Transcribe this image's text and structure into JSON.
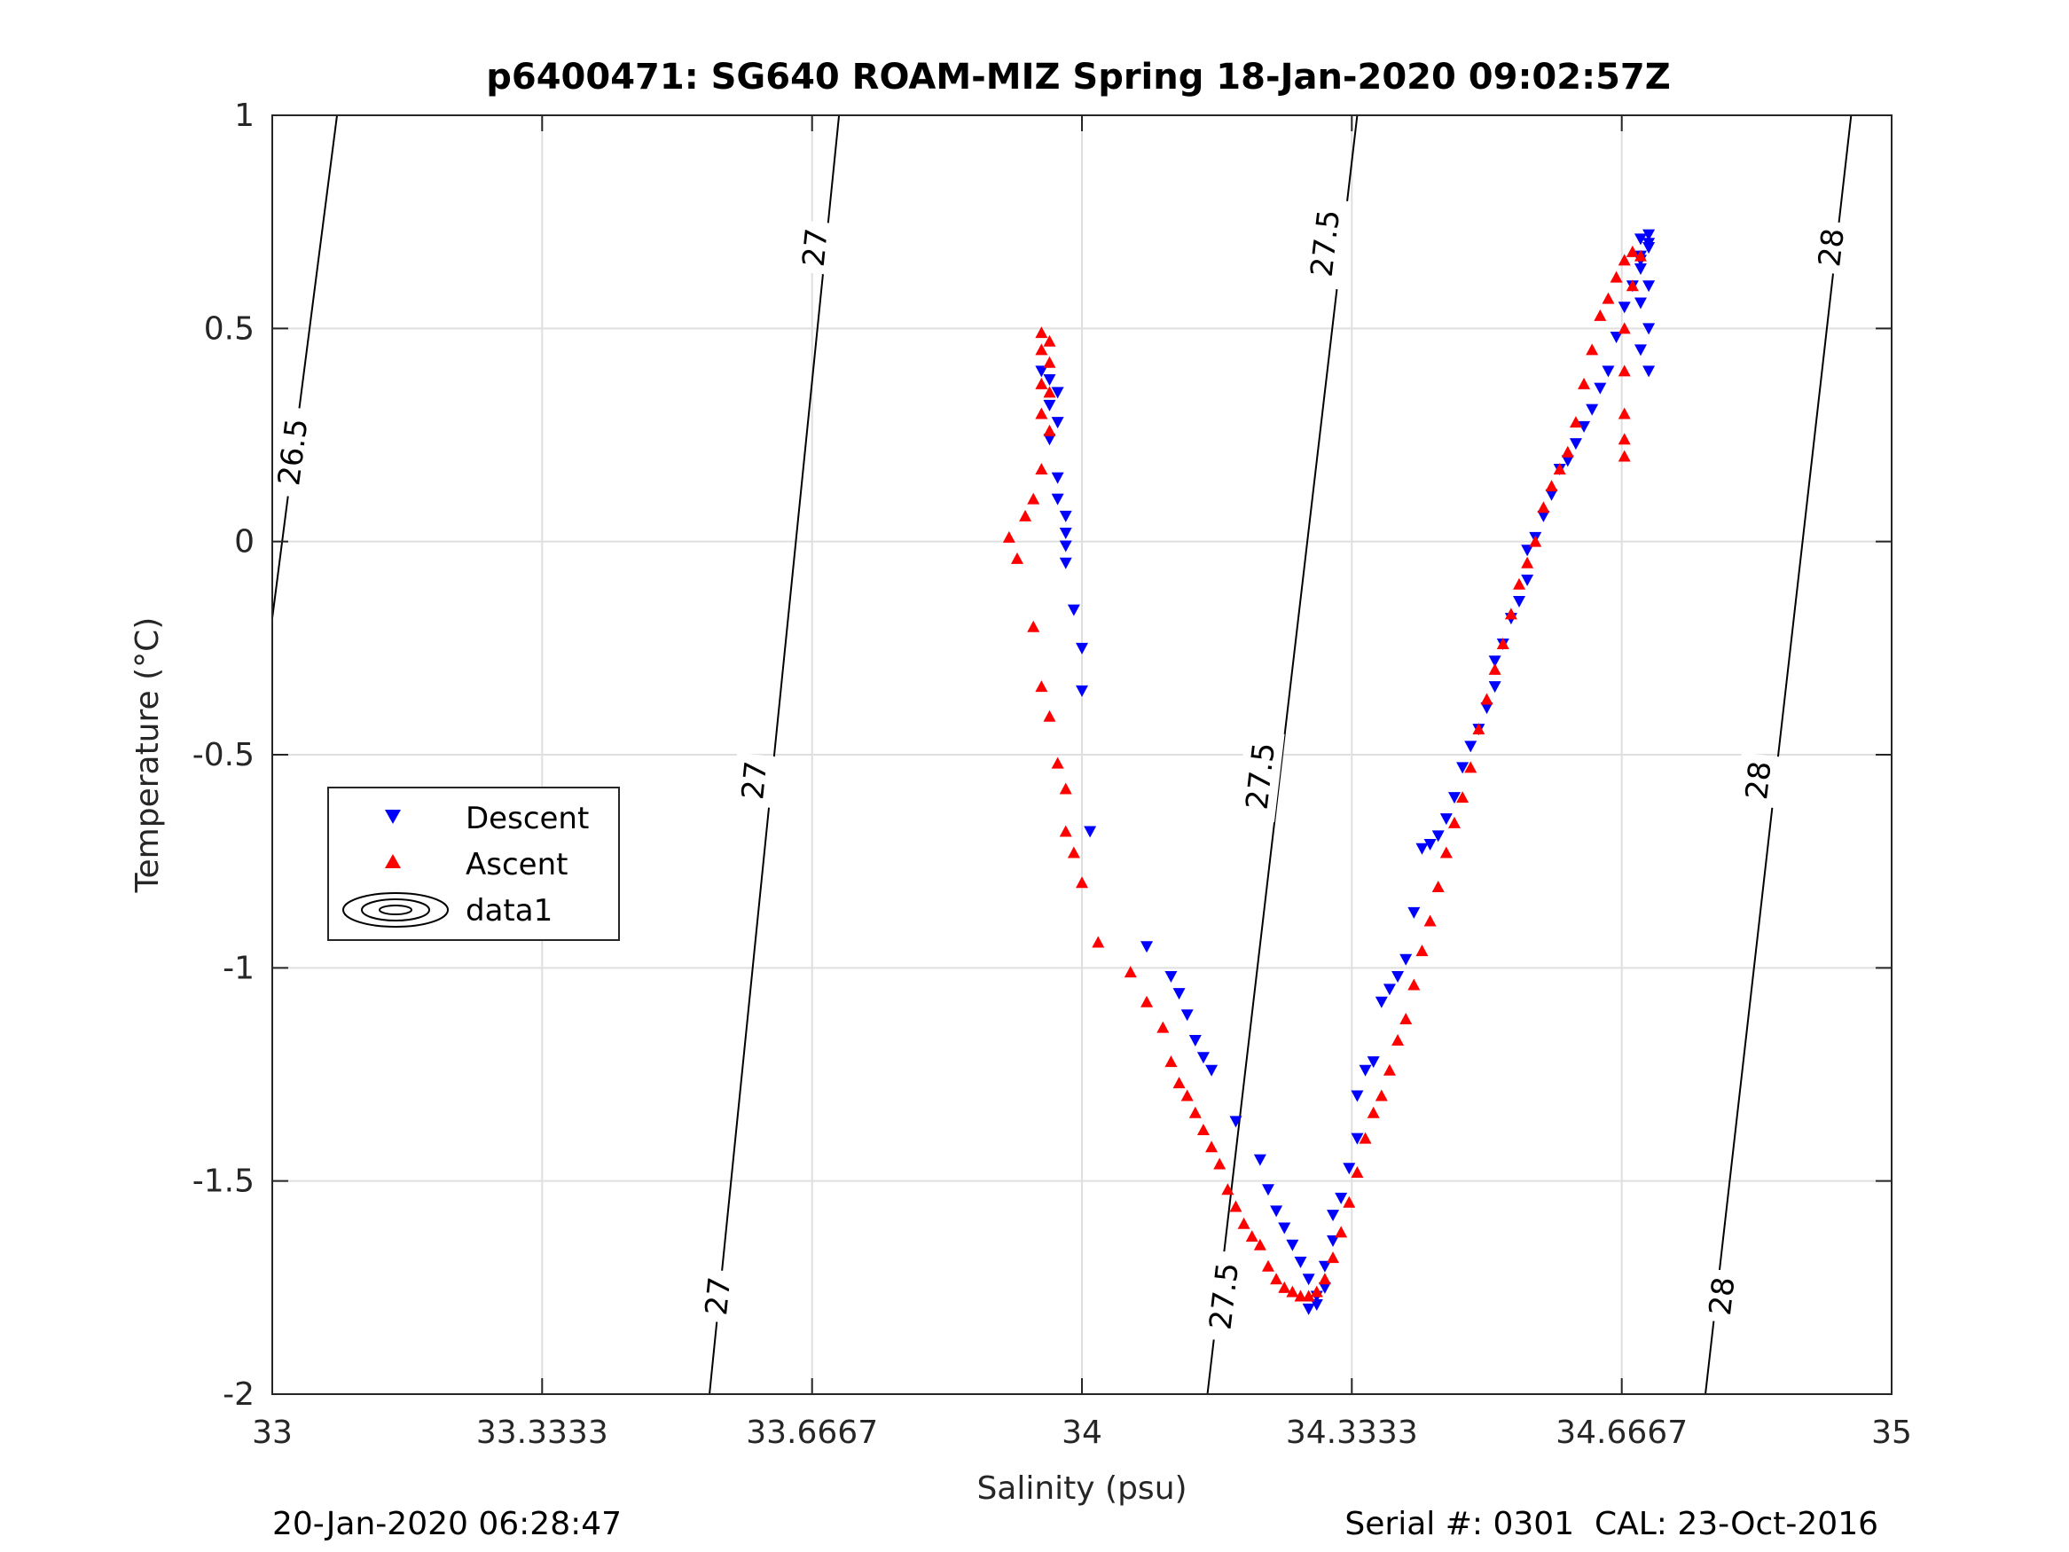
{
  "chart_data": {
    "type": "scatter",
    "title": "p6400471: SG640 ROAM-MIZ Spring 18-Jan-2020 09:02:57Z",
    "xlabel": "Salinity (psu)",
    "ylabel": "Temperature (°C)",
    "xlim": [
      33,
      35
    ],
    "ylim": [
      -2,
      1
    ],
    "x_ticks": [
      33,
      33.3333,
      33.6667,
      34,
      34.3333,
      34.6667,
      35
    ],
    "x_tick_labels": [
      "33",
      "33.3333",
      "33.6667",
      "34",
      "34.3333",
      "34.6667",
      "35"
    ],
    "y_ticks": [
      -2,
      -1.5,
      -1,
      -0.5,
      0,
      0.5,
      1
    ],
    "y_tick_labels": [
      "-2",
      "-1.5",
      "-1",
      "-0.5",
      "0",
      "0.5",
      "1"
    ],
    "grid": true,
    "legend_position": "middle-left",
    "legend": [
      "Descent",
      "Ascent",
      "data1"
    ],
    "colors": {
      "descent": "#0000ff",
      "ascent": "#ff0000",
      "contour": "#000000",
      "grid": "#dfdfdf",
      "axis": "#262626"
    },
    "series": [
      {
        "name": "Descent",
        "marker": "triangle-down",
        "color": "#0000ff",
        "points": [
          [
            33.95,
            0.4
          ],
          [
            33.96,
            0.38
          ],
          [
            33.97,
            0.35
          ],
          [
            33.96,
            0.32
          ],
          [
            33.97,
            0.28
          ],
          [
            33.96,
            0.24
          ],
          [
            33.97,
            0.15
          ],
          [
            33.97,
            0.1
          ],
          [
            33.98,
            0.06
          ],
          [
            33.98,
            0.02
          ],
          [
            33.98,
            -0.01
          ],
          [
            33.98,
            -0.05
          ],
          [
            33.99,
            -0.16
          ],
          [
            34.0,
            -0.25
          ],
          [
            34.0,
            -0.35
          ],
          [
            34.01,
            -0.68
          ],
          [
            34.08,
            -0.95
          ],
          [
            34.11,
            -1.02
          ],
          [
            34.12,
            -1.06
          ],
          [
            34.13,
            -1.11
          ],
          [
            34.14,
            -1.17
          ],
          [
            34.15,
            -1.21
          ],
          [
            34.16,
            -1.24
          ],
          [
            34.19,
            -1.36
          ],
          [
            34.22,
            -1.45
          ],
          [
            34.23,
            -1.52
          ],
          [
            34.24,
            -1.57
          ],
          [
            34.25,
            -1.61
          ],
          [
            34.26,
            -1.65
          ],
          [
            34.27,
            -1.69
          ],
          [
            34.28,
            -1.73
          ],
          [
            34.29,
            -1.77
          ],
          [
            34.28,
            -1.8
          ],
          [
            34.29,
            -1.79
          ],
          [
            34.3,
            -1.75
          ],
          [
            34.3,
            -1.7
          ],
          [
            34.31,
            -1.64
          ],
          [
            34.31,
            -1.58
          ],
          [
            34.32,
            -1.54
          ],
          [
            34.33,
            -1.47
          ],
          [
            34.34,
            -1.4
          ],
          [
            34.34,
            -1.3
          ],
          [
            34.35,
            -1.24
          ],
          [
            34.36,
            -1.22
          ],
          [
            34.37,
            -1.08
          ],
          [
            34.38,
            -1.05
          ],
          [
            34.39,
            -1.02
          ],
          [
            34.4,
            -0.98
          ],
          [
            34.41,
            -0.87
          ],
          [
            34.42,
            -0.72
          ],
          [
            34.43,
            -0.71
          ],
          [
            34.44,
            -0.69
          ],
          [
            34.45,
            -0.65
          ],
          [
            34.46,
            -0.6
          ],
          [
            34.47,
            -0.53
          ],
          [
            34.48,
            -0.48
          ],
          [
            34.49,
            -0.44
          ],
          [
            34.5,
            -0.39
          ],
          [
            34.51,
            -0.34
          ],
          [
            34.51,
            -0.28
          ],
          [
            34.52,
            -0.24
          ],
          [
            34.53,
            -0.18
          ],
          [
            34.54,
            -0.14
          ],
          [
            34.55,
            -0.09
          ],
          [
            34.55,
            -0.02
          ],
          [
            34.56,
            0.01
          ],
          [
            34.57,
            0.06
          ],
          [
            34.58,
            0.11
          ],
          [
            34.59,
            0.17
          ],
          [
            34.6,
            0.19
          ],
          [
            34.61,
            0.23
          ],
          [
            34.62,
            0.27
          ],
          [
            34.63,
            0.31
          ],
          [
            34.64,
            0.36
          ],
          [
            34.65,
            0.4
          ],
          [
            34.66,
            0.48
          ],
          [
            34.67,
            0.55
          ],
          [
            34.68,
            0.6
          ],
          [
            34.69,
            0.64
          ],
          [
            34.69,
            0.67
          ],
          [
            34.7,
            0.69
          ],
          [
            34.7,
            0.72
          ],
          [
            34.69,
            0.71
          ],
          [
            34.7,
            0.7
          ],
          [
            34.69,
            0.66
          ],
          [
            34.7,
            0.6
          ],
          [
            34.69,
            0.56
          ],
          [
            34.7,
            0.5
          ],
          [
            34.69,
            0.45
          ],
          [
            34.7,
            0.4
          ]
        ]
      },
      {
        "name": "Ascent",
        "marker": "triangle-up",
        "color": "#ff0000",
        "points": [
          [
            33.95,
            0.49
          ],
          [
            33.96,
            0.47
          ],
          [
            33.95,
            0.45
          ],
          [
            33.96,
            0.42
          ],
          [
            33.95,
            0.37
          ],
          [
            33.96,
            0.35
          ],
          [
            33.95,
            0.3
          ],
          [
            33.96,
            0.26
          ],
          [
            33.95,
            0.17
          ],
          [
            33.94,
            0.1
          ],
          [
            33.93,
            0.06
          ],
          [
            33.91,
            0.01
          ],
          [
            33.92,
            -0.04
          ],
          [
            33.94,
            -0.2
          ],
          [
            33.95,
            -0.34
          ],
          [
            33.96,
            -0.41
          ],
          [
            33.97,
            -0.52
          ],
          [
            33.98,
            -0.58
          ],
          [
            33.98,
            -0.68
          ],
          [
            33.99,
            -0.73
          ],
          [
            34.0,
            -0.8
          ],
          [
            34.02,
            -0.94
          ],
          [
            34.06,
            -1.01
          ],
          [
            34.08,
            -1.08
          ],
          [
            34.1,
            -1.14
          ],
          [
            34.11,
            -1.22
          ],
          [
            34.12,
            -1.27
          ],
          [
            34.13,
            -1.3
          ],
          [
            34.14,
            -1.34
          ],
          [
            34.15,
            -1.38
          ],
          [
            34.16,
            -1.42
          ],
          [
            34.17,
            -1.46
          ],
          [
            34.18,
            -1.52
          ],
          [
            34.19,
            -1.56
          ],
          [
            34.2,
            -1.6
          ],
          [
            34.21,
            -1.63
          ],
          [
            34.22,
            -1.65
          ],
          [
            34.23,
            -1.7
          ],
          [
            34.24,
            -1.73
          ],
          [
            34.25,
            -1.75
          ],
          [
            34.26,
            -1.76
          ],
          [
            34.27,
            -1.77
          ],
          [
            34.28,
            -1.77
          ],
          [
            34.29,
            -1.76
          ],
          [
            34.3,
            -1.73
          ],
          [
            34.31,
            -1.68
          ],
          [
            34.32,
            -1.62
          ],
          [
            34.33,
            -1.55
          ],
          [
            34.34,
            -1.48
          ],
          [
            34.35,
            -1.4
          ],
          [
            34.36,
            -1.34
          ],
          [
            34.37,
            -1.3
          ],
          [
            34.38,
            -1.24
          ],
          [
            34.39,
            -1.17
          ],
          [
            34.4,
            -1.12
          ],
          [
            34.41,
            -1.04
          ],
          [
            34.42,
            -0.96
          ],
          [
            34.43,
            -0.89
          ],
          [
            34.44,
            -0.81
          ],
          [
            34.45,
            -0.73
          ],
          [
            34.46,
            -0.66
          ],
          [
            34.47,
            -0.6
          ],
          [
            34.48,
            -0.53
          ],
          [
            34.49,
            -0.44
          ],
          [
            34.5,
            -0.37
          ],
          [
            34.51,
            -0.3
          ],
          [
            34.52,
            -0.24
          ],
          [
            34.53,
            -0.17
          ],
          [
            34.54,
            -0.1
          ],
          [
            34.55,
            -0.05
          ],
          [
            34.56,
            0.0
          ],
          [
            34.57,
            0.08
          ],
          [
            34.58,
            0.13
          ],
          [
            34.59,
            0.17
          ],
          [
            34.6,
            0.21
          ],
          [
            34.61,
            0.28
          ],
          [
            34.62,
            0.37
          ],
          [
            34.63,
            0.45
          ],
          [
            34.64,
            0.53
          ],
          [
            34.65,
            0.57
          ],
          [
            34.66,
            0.62
          ],
          [
            34.67,
            0.66
          ],
          [
            34.68,
            0.68
          ],
          [
            34.69,
            0.67
          ],
          [
            34.68,
            0.6
          ],
          [
            34.67,
            0.5
          ],
          [
            34.67,
            0.4
          ],
          [
            34.67,
            0.3
          ],
          [
            34.67,
            0.24
          ],
          [
            34.67,
            0.2
          ]
        ]
      }
    ],
    "contours": [
      {
        "label": "26.5",
        "line": [
          [
            33.0,
            -0.18
          ],
          [
            33.08,
            1.0
          ]
        ],
        "label_pos": [
          33.025,
          0.21
        ]
      },
      {
        "label": "27",
        "line": [
          [
            33.54,
            -2.0
          ],
          [
            33.7,
            1.0
          ]
        ],
        "label_pos": [
          33.55,
          -1.77
        ]
      },
      {
        "label": "27.5",
        "line": [
          [
            34.155,
            -2.0
          ],
          [
            34.34,
            1.0
          ]
        ],
        "label_pos": [
          34.175,
          -1.77
        ]
      },
      {
        "label": "28",
        "line": [
          [
            34.77,
            -2.0
          ],
          [
            34.95,
            1.0
          ]
        ],
        "label_pos": [
          34.79,
          -1.77
        ]
      }
    ],
    "contour_extra_labels": [
      {
        "label": "27",
        "pos": [
          33.67,
          0.69
        ]
      },
      {
        "label": "27",
        "pos": [
          33.595,
          -0.56
        ]
      },
      {
        "label": "27.5",
        "pos": [
          34.3,
          0.7
        ]
      },
      {
        "label": "27.5",
        "pos": [
          34.22,
          -0.55
        ]
      },
      {
        "label": "28",
        "pos": [
          34.925,
          0.69
        ]
      },
      {
        "label": "28",
        "pos": [
          34.835,
          -0.56
        ]
      }
    ]
  },
  "footer": {
    "left": "20-Jan-2020 06:28:47",
    "right": "Serial #: 0301  CAL: 23-Oct-2016"
  }
}
